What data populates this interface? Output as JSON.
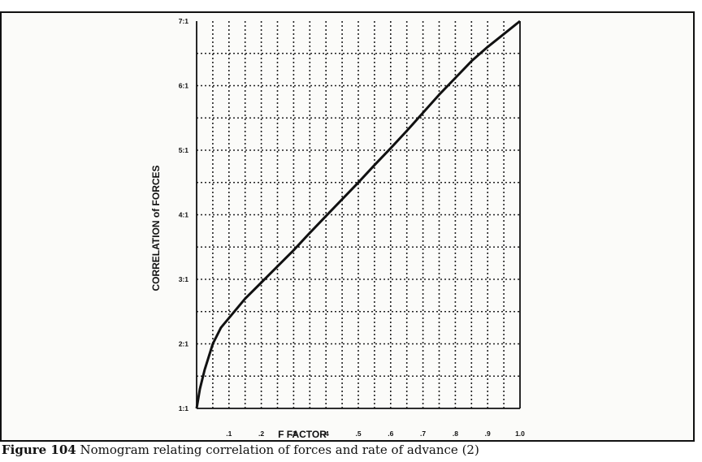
{
  "caption": {
    "figure_number": "Figure 104",
    "text": "Nomogram relating correlation of forces and rate of advance (2)"
  },
  "chart_data": {
    "type": "line",
    "xlabel": "F FACTOR",
    "ylabel": "CORRELATION of FORCES",
    "xlim": [
      0,
      1.0
    ],
    "ylim": [
      1,
      7
    ],
    "x_tick_values": [
      0.1,
      0.2,
      0.3,
      0.4,
      0.5,
      0.6,
      0.7,
      0.8,
      0.9,
      1.0
    ],
    "x_tick_labels": [
      ".1",
      ".2",
      ".3",
      ".4",
      ".5",
      ".6",
      ".7",
      ".8",
      ".9",
      "1.0"
    ],
    "y_tick_values": [
      1,
      2,
      3,
      4,
      5,
      6,
      7
    ],
    "y_tick_labels": [
      "1:1",
      "2:1",
      "3:1",
      "4:1",
      "5:1",
      "6:1",
      "7:1"
    ],
    "grid": true,
    "series": [
      {
        "x": [
          0,
          0.01,
          0.025,
          0.05,
          0.075,
          0.1,
          0.15,
          0.2,
          0.25,
          0.3,
          0.35,
          0.4,
          0.45,
          0.5,
          0.55,
          0.6,
          0.65,
          0.7,
          0.75,
          0.8,
          0.85,
          0.9,
          0.95,
          1.0
        ],
        "y": [
          1.0,
          1.3,
          1.6,
          2.0,
          2.25,
          2.4,
          2.7,
          2.95,
          3.2,
          3.45,
          3.72,
          3.98,
          4.24,
          4.5,
          4.77,
          5.03,
          5.3,
          5.58,
          5.86,
          6.12,
          6.38,
          6.6,
          6.8,
          7.0
        ]
      }
    ]
  }
}
